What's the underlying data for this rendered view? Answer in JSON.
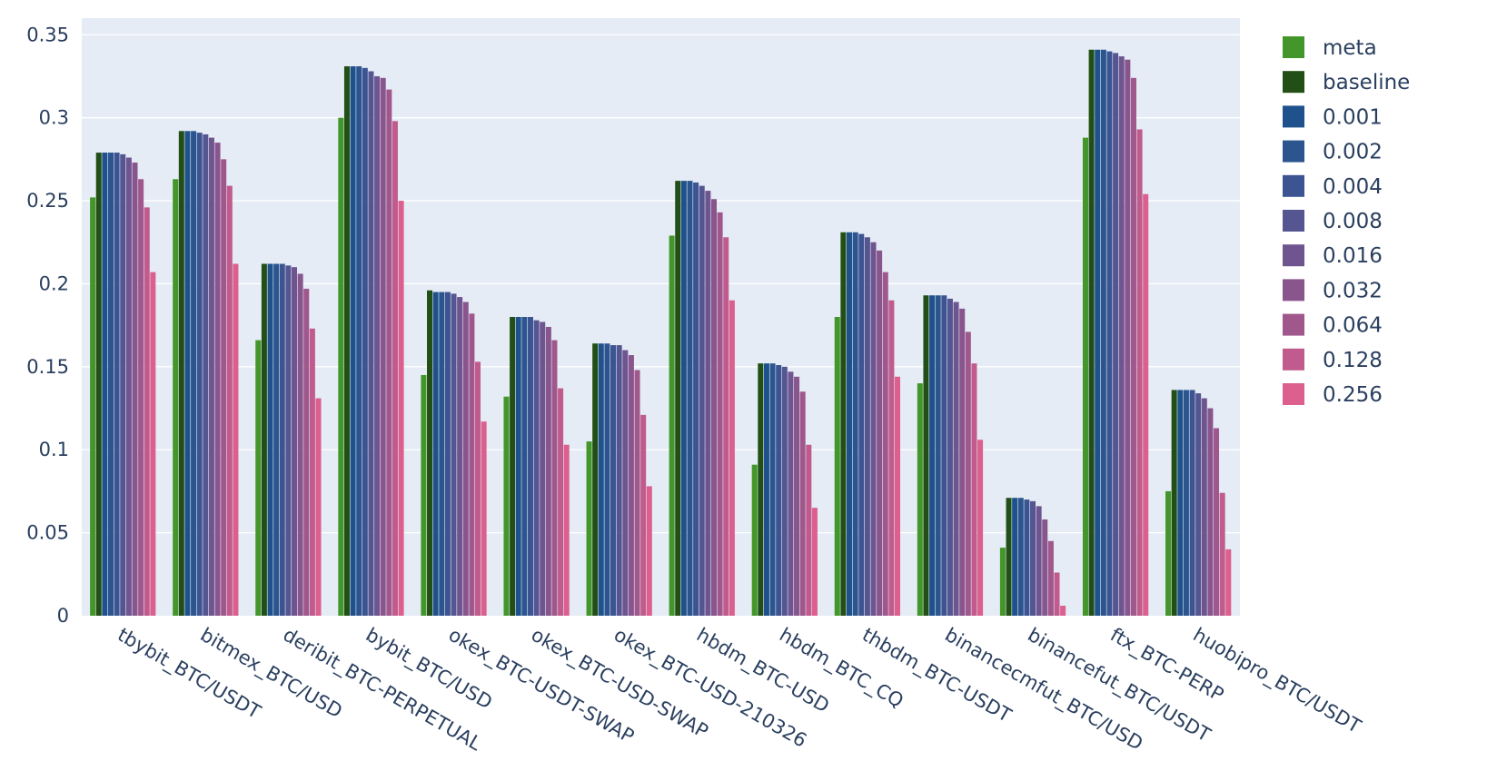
{
  "chart_data": {
    "type": "bar",
    "title": "",
    "xlabel": "",
    "ylabel": "",
    "ylim": [
      0,
      0.36
    ],
    "grid": true,
    "legend_position": "right",
    "plot_background": "#e5ecf6",
    "y_ticks": [
      0,
      0.05,
      0.1,
      0.15,
      0.2,
      0.25,
      0.3,
      0.35
    ],
    "y_tick_labels": [
      "0",
      "0.05",
      "0.1",
      "0.15",
      "0.2",
      "0.25",
      "0.3",
      "0.35"
    ],
    "categories": [
      "tbybit_BTC/USDT",
      "bitmex_BTC/USD",
      "deribit_BTC-PERPETUAL",
      "bybit_BTC/USD",
      "okex_BTC-USDT-SWAP",
      "okex_BTC-USD-SWAP",
      "okex_BTC-USD-210326",
      "hbdm_BTC-USD",
      "hbdm_BTC_CQ",
      "thbdm_BTC-USDT",
      "binancecmfut_BTC/USD",
      "binancefut_BTC/USDT",
      "ftx_BTC-PERP",
      "huobipro_BTC/USDT"
    ],
    "series": [
      {
        "name": "meta",
        "color": "#43962a",
        "values": [
          0.252,
          0.263,
          0.166,
          0.3,
          0.145,
          0.132,
          0.105,
          0.229,
          0.091,
          0.18,
          0.14,
          0.041,
          0.288,
          0.075
        ]
      },
      {
        "name": "baseline",
        "color": "#224f15",
        "values": [
          0.279,
          0.292,
          0.212,
          0.331,
          0.196,
          0.18,
          0.164,
          0.262,
          0.152,
          0.231,
          0.193,
          0.071,
          0.341,
          0.136
        ]
      },
      {
        "name": "0.001",
        "color": "#1f528c",
        "values": [
          0.279,
          0.292,
          0.212,
          0.331,
          0.195,
          0.18,
          0.164,
          0.262,
          0.152,
          0.231,
          0.193,
          0.071,
          0.341,
          0.136
        ]
      },
      {
        "name": "0.002",
        "color": "#2c5590",
        "values": [
          0.279,
          0.292,
          0.212,
          0.331,
          0.195,
          0.18,
          0.164,
          0.262,
          0.152,
          0.231,
          0.193,
          0.071,
          0.341,
          0.136
        ]
      },
      {
        "name": "0.004",
        "color": "#3c5592",
        "values": [
          0.279,
          0.291,
          0.212,
          0.33,
          0.195,
          0.18,
          0.163,
          0.261,
          0.151,
          0.23,
          0.193,
          0.07,
          0.34,
          0.136
        ]
      },
      {
        "name": "0.008",
        "color": "#555691",
        "values": [
          0.278,
          0.29,
          0.211,
          0.328,
          0.194,
          0.178,
          0.163,
          0.259,
          0.15,
          0.228,
          0.191,
          0.069,
          0.339,
          0.134
        ]
      },
      {
        "name": "0.016",
        "color": "#6f5590",
        "values": [
          0.276,
          0.288,
          0.21,
          0.325,
          0.192,
          0.177,
          0.16,
          0.256,
          0.147,
          0.225,
          0.189,
          0.066,
          0.337,
          0.131
        ]
      },
      {
        "name": "0.032",
        "color": "#88558d",
        "values": [
          0.273,
          0.285,
          0.206,
          0.324,
          0.189,
          0.174,
          0.157,
          0.251,
          0.144,
          0.22,
          0.185,
          0.058,
          0.335,
          0.125
        ]
      },
      {
        "name": "0.064",
        "color": "#a0578c",
        "values": [
          0.263,
          0.275,
          0.197,
          0.317,
          0.182,
          0.166,
          0.148,
          0.243,
          0.135,
          0.207,
          0.171,
          0.045,
          0.324,
          0.113
        ]
      },
      {
        "name": "0.128",
        "color": "#c15b8d",
        "values": [
          0.246,
          0.259,
          0.173,
          0.298,
          0.153,
          0.137,
          0.121,
          0.228,
          0.103,
          0.19,
          0.152,
          0.026,
          0.293,
          0.074
        ]
      },
      {
        "name": "0.256",
        "color": "#dc5f8d",
        "values": [
          0.207,
          0.212,
          0.131,
          0.25,
          0.117,
          0.103,
          0.078,
          0.19,
          0.065,
          0.144,
          0.106,
          0.006,
          0.254,
          0.04
        ]
      }
    ]
  }
}
